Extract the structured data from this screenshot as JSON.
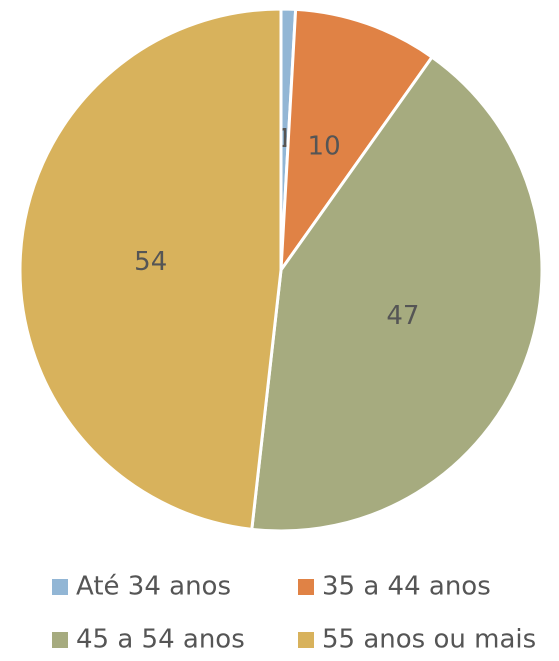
{
  "chart_data": {
    "type": "pie",
    "categories": [
      "Até 34 anos",
      "35 a 44 anos",
      "45 a 54 anos",
      "55 anos ou mais"
    ],
    "values": [
      1,
      10,
      47,
      54
    ],
    "colors": [
      "#92b6d5",
      "#e08245",
      "#a6ab7f",
      "#d8b25c"
    ],
    "legend": "bottom"
  }
}
